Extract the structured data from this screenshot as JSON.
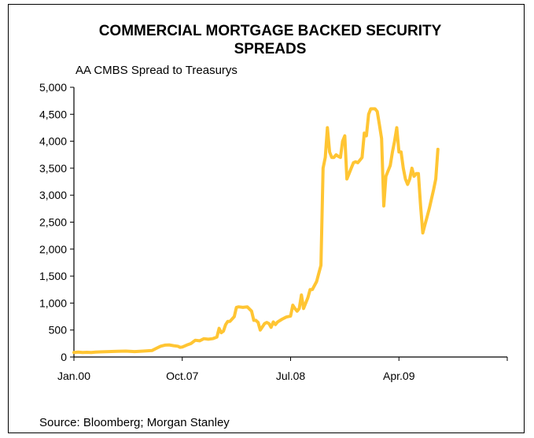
{
  "chart_data": {
    "type": "line",
    "title": "COMMERCIAL MORTGAGE BACKED SECURITY SPREADS",
    "title_lines": [
      "COMMERCIAL MORTGAGE BACKED SECURITY",
      "SPREADS"
    ],
    "subtitle": "AA CMBS  Spread to Treasurys",
    "source": "Source: Bloomberg; Morgan Stanley",
    "xlabel": "",
    "ylabel": "",
    "ylim": [
      0,
      5000
    ],
    "yticks": [
      0,
      500,
      1000,
      1500,
      2000,
      2500,
      3000,
      3500,
      4000,
      4500,
      5000
    ],
    "ytick_labels": [
      "0",
      "500",
      "1,000",
      "1,500",
      "2,000",
      "2,500",
      "3,000",
      "3,500",
      "4,000",
      "4,500",
      "5,000"
    ],
    "xtick_labels": [
      "Jan.00",
      "Oct.07",
      "Jul.08",
      "Apr.09"
    ],
    "xtick_positions": [
      0,
      0.25,
      0.5,
      0.75
    ],
    "grid": false,
    "line_color": "#FFC533",
    "series": [
      {
        "values": [
          [
            0,
            85
          ],
          [
            0.01,
            90
          ],
          [
            0.02,
            85
          ],
          [
            0.03,
            88
          ],
          [
            0.04,
            85
          ],
          [
            0.05,
            90
          ],
          [
            0.06,
            95
          ],
          [
            0.08,
            100
          ],
          [
            0.1,
            105
          ],
          [
            0.12,
            110
          ],
          [
            0.14,
            100
          ],
          [
            0.16,
            110
          ],
          [
            0.18,
            120
          ],
          [
            0.19,
            160
          ],
          [
            0.2,
            200
          ],
          [
            0.21,
            220
          ],
          [
            0.22,
            225
          ],
          [
            0.23,
            210
          ],
          [
            0.24,
            200
          ],
          [
            0.245,
            180
          ],
          [
            0.25,
            185
          ],
          [
            0.26,
            220
          ],
          [
            0.27,
            250
          ],
          [
            0.28,
            310
          ],
          [
            0.29,
            300
          ],
          [
            0.3,
            340
          ],
          [
            0.31,
            330
          ],
          [
            0.32,
            340
          ],
          [
            0.33,
            370
          ],
          [
            0.335,
            530
          ],
          [
            0.34,
            450
          ],
          [
            0.345,
            480
          ],
          [
            0.35,
            600
          ],
          [
            0.355,
            660
          ],
          [
            0.36,
            660
          ],
          [
            0.37,
            750
          ],
          [
            0.375,
            920
          ],
          [
            0.38,
            930
          ],
          [
            0.39,
            920
          ],
          [
            0.4,
            930
          ],
          [
            0.41,
            850
          ],
          [
            0.415,
            680
          ],
          [
            0.42,
            680
          ],
          [
            0.425,
            640
          ],
          [
            0.43,
            500
          ],
          [
            0.435,
            560
          ],
          [
            0.44,
            620
          ],
          [
            0.445,
            640
          ],
          [
            0.45,
            620
          ],
          [
            0.455,
            550
          ],
          [
            0.46,
            650
          ],
          [
            0.465,
            600
          ],
          [
            0.47,
            650
          ],
          [
            0.48,
            700
          ],
          [
            0.49,
            740
          ],
          [
            0.495,
            750
          ],
          [
            0.5,
            760
          ],
          [
            0.505,
            960
          ],
          [
            0.51,
            900
          ],
          [
            0.515,
            850
          ],
          [
            0.52,
            900
          ],
          [
            0.525,
            1150
          ],
          [
            0.53,
            900
          ],
          [
            0.54,
            1100
          ],
          [
            0.545,
            1250
          ],
          [
            0.55,
            1250
          ],
          [
            0.56,
            1400
          ],
          [
            0.565,
            1550
          ],
          [
            0.57,
            1700
          ],
          [
            0.575,
            3500
          ],
          [
            0.58,
            3700
          ],
          [
            0.585,
            4250
          ],
          [
            0.59,
            3800
          ],
          [
            0.595,
            3700
          ],
          [
            0.6,
            3700
          ],
          [
            0.605,
            3750
          ],
          [
            0.61,
            3720
          ],
          [
            0.615,
            3700
          ],
          [
            0.62,
            4000
          ],
          [
            0.625,
            4100
          ],
          [
            0.63,
            3300
          ],
          [
            0.635,
            3400
          ],
          [
            0.64,
            3500
          ],
          [
            0.645,
            3600
          ],
          [
            0.65,
            3620
          ],
          [
            0.655,
            3600
          ],
          [
            0.66,
            3650
          ],
          [
            0.665,
            3700
          ],
          [
            0.67,
            4150
          ],
          [
            0.675,
            4100
          ],
          [
            0.68,
            4500
          ],
          [
            0.685,
            4600
          ],
          [
            0.69,
            4600
          ],
          [
            0.695,
            4600
          ],
          [
            0.7,
            4550
          ],
          [
            0.705,
            4300
          ],
          [
            0.71,
            4050
          ],
          [
            0.715,
            2800
          ],
          [
            0.72,
            3350
          ],
          [
            0.725,
            3450
          ],
          [
            0.73,
            3550
          ],
          [
            0.735,
            3800
          ],
          [
            0.74,
            4000
          ],
          [
            0.745,
            4250
          ],
          [
            0.75,
            3800
          ],
          [
            0.755,
            3800
          ],
          [
            0.76,
            3500
          ],
          [
            0.765,
            3300
          ],
          [
            0.77,
            3200
          ],
          [
            0.775,
            3300
          ],
          [
            0.78,
            3500
          ],
          [
            0.785,
            3350
          ],
          [
            0.79,
            3400
          ],
          [
            0.795,
            3400
          ],
          [
            0.8,
            2800
          ],
          [
            0.805,
            2300
          ],
          [
            0.81,
            2450
          ],
          [
            0.815,
            2600
          ],
          [
            0.82,
            2750
          ],
          [
            0.83,
            3100
          ],
          [
            0.835,
            3300
          ],
          [
            0.84,
            3850
          ]
        ]
      }
    ]
  }
}
